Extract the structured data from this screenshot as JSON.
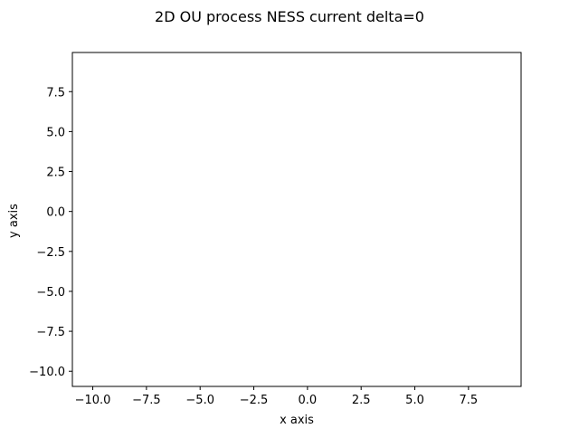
{
  "chart_data": {
    "type": "scatter",
    "title": "2D OU process NESS current delta=0",
    "xlabel": "x axis",
    "ylabel": "y axis",
    "xlim": [
      -10.95,
      9.95
    ],
    "ylim": [
      -10.95,
      9.95
    ],
    "xticks": [
      -10.0,
      -7.5,
      -5.0,
      -2.5,
      0.0,
      2.5,
      5.0,
      7.5
    ],
    "xtick_labels": [
      "−10.0",
      "−7.5",
      "−5.0",
      "−2.5",
      "0.0",
      "2.5",
      "5.0",
      "7.5"
    ],
    "yticks": [
      -10.0,
      -7.5,
      -5.0,
      -2.5,
      0.0,
      2.5,
      5.0,
      7.5
    ],
    "ytick_labels": [
      "−10.0",
      "−7.5",
      "−5.0",
      "−2.5",
      "0.0",
      "2.5",
      "5.0",
      "7.5"
    ],
    "grid": false,
    "series": []
  }
}
